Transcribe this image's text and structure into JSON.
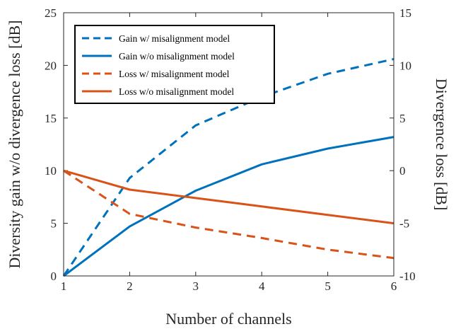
{
  "chart_data": {
    "type": "line",
    "xlabel": "Number of channels",
    "ylabel_left": "Diversity gain w/o divergence loss [dB]",
    "ylabel_right": "Divergence loss [dB]",
    "x": [
      1,
      2,
      3,
      4,
      5,
      6
    ],
    "xlim": [
      1,
      6
    ],
    "ylim_left": [
      0,
      25
    ],
    "ylim_right": [
      -10,
      15
    ],
    "xticks": [
      "1",
      "2",
      "3",
      "4",
      "5",
      "6"
    ],
    "yticks_left": [
      "0",
      "5",
      "10",
      "15",
      "20",
      "25"
    ],
    "yticks_right": [
      "-10",
      "-5",
      "0",
      "5",
      "10",
      "15"
    ],
    "grid": false,
    "legend_position": "top-left",
    "series": [
      {
        "name": "Gain w/ misalignment model",
        "axis": "left",
        "style": "dashed",
        "color": "#0072BD",
        "values": [
          0,
          9.3,
          14.3,
          17.0,
          19.2,
          20.6
        ]
      },
      {
        "name": "Gain w/o misalignment model",
        "axis": "left",
        "style": "solid",
        "color": "#0072BD",
        "values": [
          0,
          4.7,
          8.1,
          10.6,
          12.1,
          13.2
        ]
      },
      {
        "name": "Loss w/ misalignment model",
        "axis": "right",
        "style": "dashed",
        "color": "#D95319",
        "values": [
          0,
          -4.1,
          -5.4,
          -6.4,
          -7.5,
          -8.3
        ]
      },
      {
        "name": "Loss w/o misalignment model",
        "axis": "right",
        "style": "solid",
        "color": "#D95319",
        "values": [
          0,
          -1.8,
          -2.6,
          -3.4,
          -4.2,
          -5.0
        ]
      }
    ]
  }
}
